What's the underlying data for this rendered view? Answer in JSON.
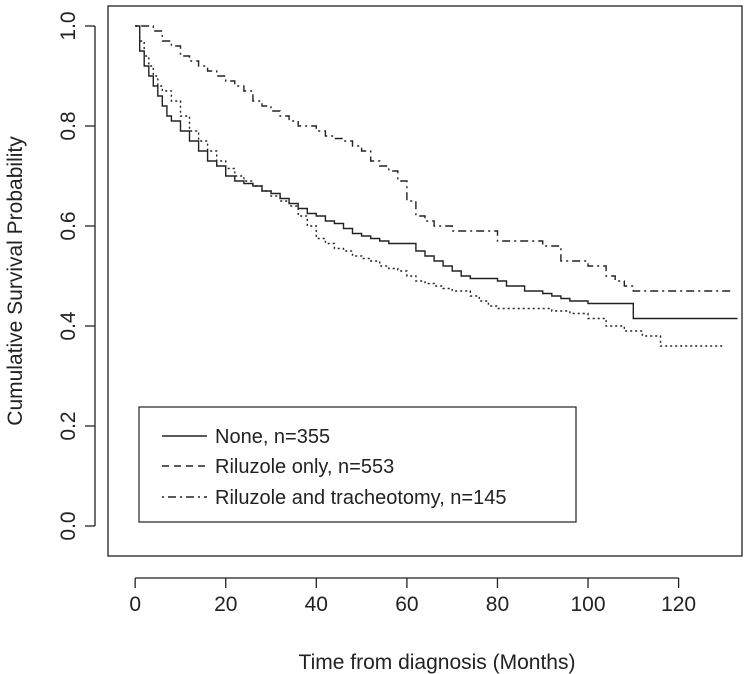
{
  "chart_data": {
    "type": "line",
    "step": true,
    "xlabel": "Time from diagnosis (Months)",
    "ylabel": "Cumulative Survival Probability",
    "xlim": [
      -6,
      134
    ],
    "ylim": [
      -0.06,
      1.04
    ],
    "xticks": [
      0,
      20,
      40,
      60,
      80,
      100,
      120
    ],
    "yticks": [
      0.0,
      0.2,
      0.4,
      0.6,
      0.8,
      1.0
    ],
    "ytick_labels": [
      "0.0",
      "0.2",
      "0.4",
      "0.6",
      "0.8",
      "1.0"
    ],
    "grid": false,
    "legend_position": "bottom-left",
    "series": [
      {
        "name": "None, n=355",
        "dash": "solid",
        "x": [
          0,
          1,
          2,
          3,
          4,
          5,
          6,
          7,
          8,
          10,
          12,
          14,
          16,
          18,
          20,
          22,
          24,
          26,
          28,
          30,
          32,
          34,
          36,
          38,
          40,
          42,
          44,
          46,
          48,
          50,
          52,
          54,
          56,
          58,
          60,
          62,
          64,
          66,
          68,
          70,
          72,
          74,
          76,
          78,
          80,
          82,
          84,
          86,
          88,
          90,
          92,
          94,
          96,
          98,
          100,
          102,
          104,
          106,
          108,
          110,
          133
        ],
        "y": [
          1.0,
          0.95,
          0.92,
          0.9,
          0.88,
          0.86,
          0.84,
          0.82,
          0.81,
          0.79,
          0.77,
          0.75,
          0.73,
          0.72,
          0.7,
          0.69,
          0.685,
          0.68,
          0.67,
          0.665,
          0.655,
          0.645,
          0.635,
          0.625,
          0.62,
          0.61,
          0.605,
          0.595,
          0.585,
          0.58,
          0.575,
          0.57,
          0.565,
          0.565,
          0.565,
          0.55,
          0.54,
          0.53,
          0.52,
          0.51,
          0.5,
          0.495,
          0.495,
          0.495,
          0.49,
          0.48,
          0.48,
          0.47,
          0.47,
          0.465,
          0.46,
          0.455,
          0.45,
          0.45,
          0.445,
          0.445,
          0.445,
          0.445,
          0.445,
          0.415,
          0.415
        ]
      },
      {
        "name": "Riluzole only, n=553",
        "dash": "dotted",
        "x": [
          0,
          1,
          2,
          3,
          4,
          5,
          6,
          8,
          10,
          12,
          14,
          16,
          18,
          20,
          22,
          24,
          26,
          28,
          30,
          32,
          34,
          36,
          38,
          40,
          42,
          44,
          46,
          48,
          50,
          52,
          54,
          56,
          58,
          60,
          62,
          64,
          66,
          68,
          70,
          72,
          74,
          76,
          78,
          80,
          84,
          88,
          92,
          96,
          100,
          104,
          108,
          112,
          116,
          130
        ],
        "y": [
          1.0,
          0.97,
          0.94,
          0.92,
          0.9,
          0.88,
          0.87,
          0.85,
          0.82,
          0.79,
          0.77,
          0.75,
          0.73,
          0.715,
          0.7,
          0.69,
          0.68,
          0.67,
          0.66,
          0.65,
          0.64,
          0.62,
          0.6,
          0.575,
          0.565,
          0.555,
          0.55,
          0.54,
          0.535,
          0.53,
          0.52,
          0.515,
          0.51,
          0.5,
          0.49,
          0.485,
          0.48,
          0.475,
          0.47,
          0.47,
          0.46,
          0.45,
          0.44,
          0.435,
          0.435,
          0.435,
          0.43,
          0.425,
          0.415,
          0.4,
          0.39,
          0.38,
          0.36,
          0.36
        ]
      },
      {
        "name": "Riluzole and tracheotomy, n=145",
        "dash": "dashdot",
        "x": [
          0,
          1,
          4,
          6,
          8,
          10,
          12,
          14,
          16,
          18,
          20,
          22,
          24,
          26,
          28,
          30,
          32,
          34,
          36,
          38,
          40,
          42,
          44,
          46,
          48,
          50,
          52,
          54,
          56,
          58,
          60,
          62,
          64,
          66,
          70,
          80,
          90,
          94,
          100,
          104,
          106,
          108,
          110,
          132
        ],
        "y": [
          1.0,
          1.0,
          0.99,
          0.97,
          0.96,
          0.94,
          0.93,
          0.92,
          0.91,
          0.9,
          0.89,
          0.88,
          0.87,
          0.85,
          0.84,
          0.83,
          0.82,
          0.81,
          0.8,
          0.8,
          0.79,
          0.78,
          0.775,
          0.77,
          0.76,
          0.75,
          0.73,
          0.72,
          0.71,
          0.69,
          0.65,
          0.62,
          0.61,
          0.6,
          0.59,
          0.57,
          0.56,
          0.53,
          0.52,
          0.5,
          0.49,
          0.48,
          0.47,
          0.47
        ]
      }
    ]
  }
}
